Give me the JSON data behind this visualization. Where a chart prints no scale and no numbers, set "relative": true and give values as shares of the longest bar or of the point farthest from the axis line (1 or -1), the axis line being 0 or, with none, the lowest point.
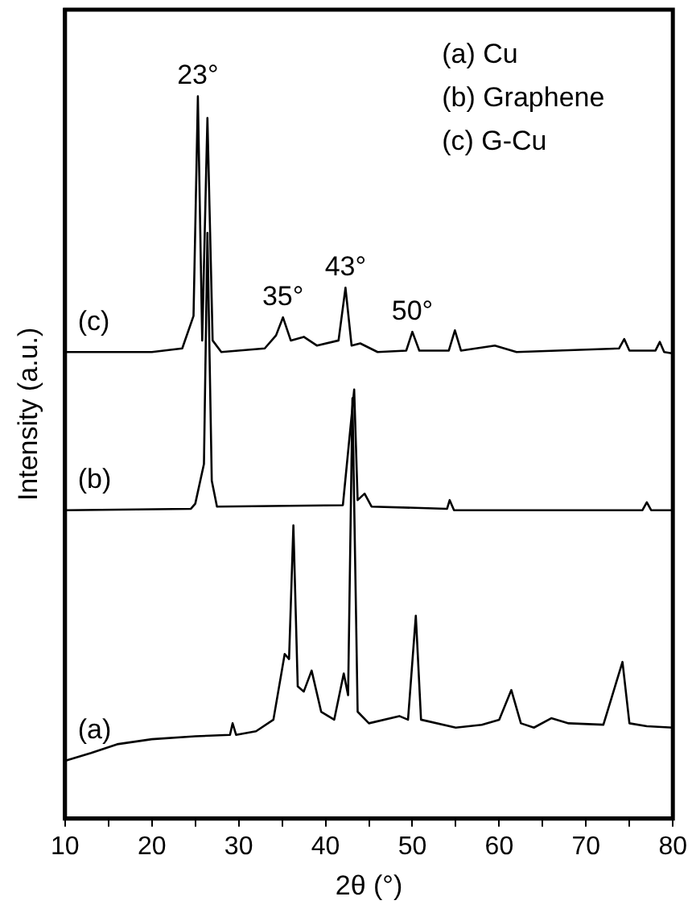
{
  "chart_data": {
    "type": "line",
    "relative": true,
    "xlabel": "2θ (°)",
    "ylabel": "Intensity (a.u.)",
    "xlim": [
      10,
      80
    ],
    "xticks": [
      10,
      {
        "value": 15,
        "label": null
      },
      20,
      {
        "value": 25,
        "label": null
      },
      30,
      {
        "value": 35,
        "label": null
      },
      40,
      {
        "value": 45,
        "label": null
      },
      50,
      {
        "value": 55,
        "label": null
      },
      60,
      {
        "value": 65,
        "label": null
      },
      70,
      {
        "value": 75,
        "label": null
      },
      80
    ],
    "grid": false,
    "legend": false,
    "marker": "none",
    "line_style": "solid",
    "annotations": [
      "(a) Cu",
      "(b) Graphene",
      "(c) G-Cu",
      {
        "text": "23°",
        "x": 25.3,
        "y": 1.0
      },
      {
        "text": "35°",
        "x": 35.1,
        "y": 0.694
      },
      {
        "text": "43°",
        "x": 42.3,
        "y": 0.735
      },
      {
        "text": "50°",
        "x": 50,
        "y": 0.674
      }
    ],
    "series": [
      {
        "name": "(a)",
        "color": "#000000",
        "x": [
          10,
          13,
          16,
          20,
          25,
          29,
          29.3,
          29.7,
          32,
          34,
          35.3,
          35.8,
          36.3,
          36.8,
          37.5,
          38.4,
          39.5,
          41,
          42.1,
          42.6,
          43.1,
          43.7,
          45,
          48.5,
          49.5,
          50.4,
          51,
          55,
          58,
          60,
          61.4,
          62.5,
          64,
          66,
          68,
          72,
          74.2,
          75,
          77,
          80
        ],
        "values": [
          0.08,
          0.091,
          0.103,
          0.11,
          0.114,
          0.116,
          0.132,
          0.116,
          0.121,
          0.137,
          0.228,
          0.221,
          0.406,
          0.183,
          0.176,
          0.205,
          0.148,
          0.137,
          0.201,
          0.171,
          0.582,
          0.148,
          0.132,
          0.142,
          0.137,
          0.281,
          0.137,
          0.126,
          0.13,
          0.137,
          0.178,
          0.132,
          0.126,
          0.139,
          0.132,
          0.13,
          0.217,
          0.132,
          0.128,
          0.126
        ]
      },
      {
        "name": "(b)",
        "color": "#000000",
        "x": [
          10,
          24.5,
          25,
          26,
          26.4,
          26.9,
          27.5,
          42,
          43.3,
          43.7,
          44.5,
          45.3,
          54,
          54.3,
          54.8,
          76.5,
          77,
          77.5,
          80
        ],
        "values": [
          0.427,
          0.429,
          0.436,
          0.491,
          0.811,
          0.468,
          0.432,
          0.434,
          0.594,
          0.441,
          0.45,
          0.432,
          0.429,
          0.441,
          0.427,
          0.427,
          0.438,
          0.427,
          0.427
        ]
      },
      {
        "name": "(c)",
        "color": "#000000",
        "x": [
          10,
          20,
          23.5,
          24.8,
          25.3,
          25.8,
          26.4,
          27,
          28,
          33,
          34.3,
          35.1,
          36,
          37.5,
          39,
          41.5,
          42.3,
          43,
          44,
          46,
          49.3,
          50,
          50.8,
          54.2,
          54.9,
          55.6,
          59.5,
          62,
          73.8,
          74.4,
          75,
          78,
          78.5,
          79,
          80
        ],
        "values": [
          0.646,
          0.646,
          0.651,
          0.696,
          1.0,
          0.662,
          0.97,
          0.662,
          0.646,
          0.651,
          0.669,
          0.694,
          0.662,
          0.667,
          0.655,
          0.662,
          0.735,
          0.655,
          0.658,
          0.646,
          0.648,
          0.674,
          0.648,
          0.648,
          0.676,
          0.648,
          0.655,
          0.646,
          0.651,
          0.664,
          0.648,
          0.648,
          0.66,
          0.646,
          0.644
        ]
      }
    ]
  }
}
